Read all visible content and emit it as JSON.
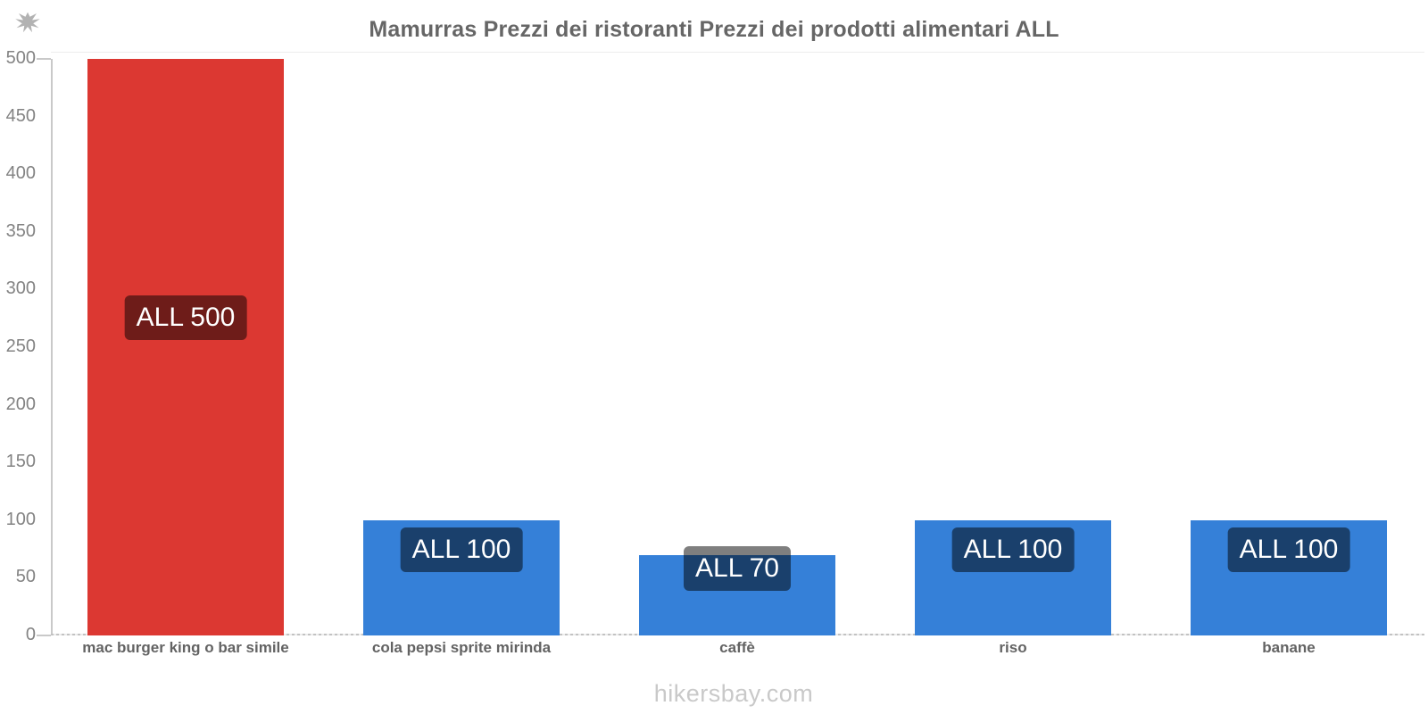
{
  "title": "Mamurras Prezzi dei ristoranti Prezzi dei prodotti alimentari ALL",
  "watermark": "hikersbay.com",
  "flag": {
    "country": "Albania",
    "color": "#dd2f2b"
  },
  "colors": {
    "red_bar": "#dc3832",
    "blue_bar": "#3580d8",
    "badge_bg": "rgba(0,0,0,0.5)",
    "badge_text": "#ffffff",
    "title_text": "#666666",
    "y_tick_text": "#838383",
    "x_label_text": "#636363",
    "axis_line": "#c9c9c9",
    "watermark_text": "#c9c9c9"
  },
  "chart_data": {
    "type": "bar",
    "title": "Mamurras Prezzi dei ristoranti Prezzi dei prodotti alimentari ALL",
    "categories": [
      "mac burger king o bar simile",
      "cola pepsi sprite mirinda",
      "caffè",
      "riso",
      "banane"
    ],
    "values": [
      500,
      100,
      70,
      100,
      100
    ],
    "value_labels": [
      "ALL 500",
      "ALL 100",
      "ALL 70",
      "ALL 100",
      "ALL 100"
    ],
    "bar_colors": [
      "#dc3832",
      "#3580d8",
      "#3580d8",
      "#3580d8",
      "#3580d8"
    ],
    "currency": "ALL",
    "xlabel": "",
    "ylabel": "",
    "ylim": [
      0,
      500
    ],
    "yticks": [
      0,
      50,
      100,
      150,
      200,
      250,
      300,
      350,
      400,
      450,
      500
    ],
    "grid": false,
    "legend": "none"
  }
}
